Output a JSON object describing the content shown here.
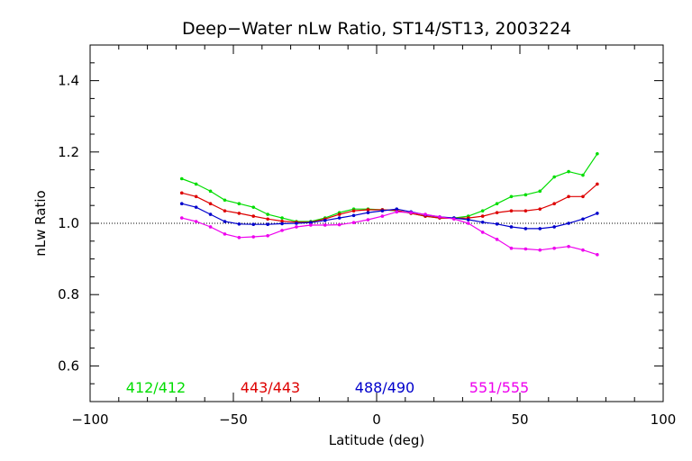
{
  "chart_data": {
    "type": "line",
    "title": "Deep−Water nLw Ratio, ST14/ST13, 2003224",
    "xlabel": "Latitude (deg)",
    "ylabel": "nLw Ratio",
    "xlim": [
      -100,
      100
    ],
    "ylim": [
      0.5,
      1.5
    ],
    "xticks": [
      -100,
      -50,
      0,
      50,
      100
    ],
    "xtick_labels": [
      "−100",
      "−50",
      "0",
      "50",
      "100"
    ],
    "yticks": [
      0.6,
      0.8,
      1.0,
      1.2,
      1.4
    ],
    "ytick_labels": [
      "0.6",
      "0.8",
      "1.0",
      "1.2",
      "1.4"
    ],
    "reference_line": 1.0,
    "legend_placement": "bottom, inside plot",
    "x": [
      -68,
      -63,
      -58,
      -53,
      -48,
      -43,
      -38,
      -33,
      -28,
      -23,
      -18,
      -13,
      -8,
      -3,
      2,
      7,
      12,
      17,
      22,
      27,
      32,
      37,
      42,
      47,
      52,
      57,
      62,
      67,
      72,
      77
    ],
    "series": [
      {
        "name": "412/412",
        "color": "#00dd00",
        "values": [
          1.125,
          1.11,
          1.09,
          1.065,
          1.055,
          1.045,
          1.025,
          1.015,
          1.005,
          1.005,
          1.015,
          1.03,
          1.04,
          1.04,
          1.038,
          1.035,
          1.028,
          1.02,
          1.015,
          1.015,
          1.02,
          1.035,
          1.055,
          1.075,
          1.08,
          1.09,
          1.13,
          1.145,
          1.135,
          1.195
        ]
      },
      {
        "name": "443/443",
        "color": "#dd0000",
        "values": [
          1.085,
          1.075,
          1.055,
          1.035,
          1.028,
          1.02,
          1.012,
          1.006,
          1.003,
          1.003,
          1.012,
          1.025,
          1.035,
          1.038,
          1.038,
          1.036,
          1.028,
          1.02,
          1.015,
          1.014,
          1.015,
          1.02,
          1.03,
          1.035,
          1.035,
          1.04,
          1.055,
          1.075,
          1.075,
          1.11
        ]
      },
      {
        "name": "488/490",
        "color": "#0000cc",
        "values": [
          1.055,
          1.045,
          1.025,
          1.005,
          0.998,
          0.997,
          0.997,
          0.999,
          1.0,
          1.002,
          1.008,
          1.015,
          1.022,
          1.03,
          1.035,
          1.04,
          1.032,
          1.024,
          1.018,
          1.015,
          1.01,
          1.003,
          0.998,
          0.99,
          0.985,
          0.985,
          0.99,
          1.0,
          1.012,
          1.028
        ]
      },
      {
        "name": "551/555",
        "color": "#ee00ee",
        "values": [
          1.015,
          1.005,
          0.99,
          0.97,
          0.96,
          0.962,
          0.965,
          0.98,
          0.99,
          0.995,
          0.995,
          0.996,
          1.002,
          1.01,
          1.02,
          1.032,
          1.03,
          1.025,
          1.018,
          1.012,
          1.0,
          0.975,
          0.955,
          0.93,
          0.928,
          0.925,
          0.93,
          0.935,
          0.925,
          0.912
        ]
      }
    ]
  }
}
